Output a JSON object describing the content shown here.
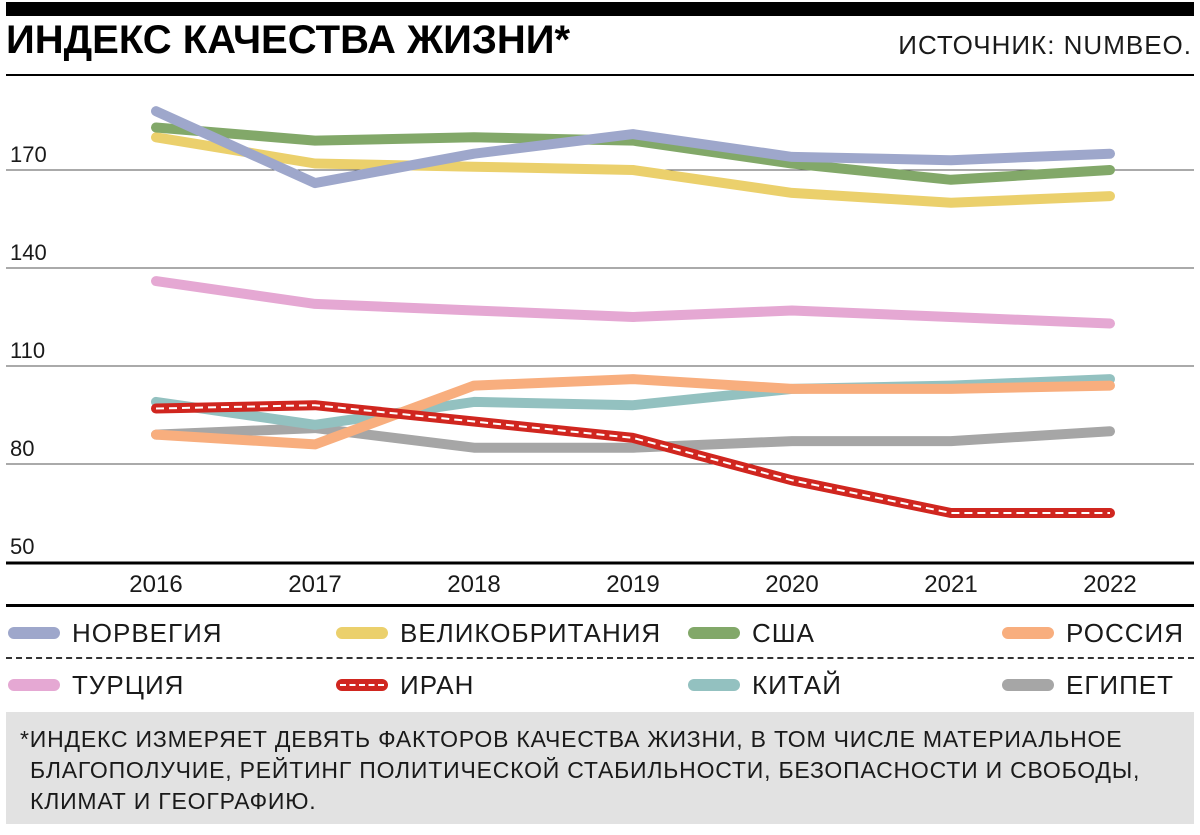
{
  "header": {
    "title": "ИНДЕКС КАЧЕСТВА ЖИЗНИ*",
    "source": "ИСТОЧНИК: NUMBEO."
  },
  "chart_data": {
    "type": "line",
    "title": "ИНДЕКС КАЧЕСТВА ЖИЗНИ*",
    "xlabel": "",
    "ylabel": "",
    "x": [
      "2016",
      "2017",
      "2018",
      "2019",
      "2020",
      "2021",
      "2022"
    ],
    "y_ticks": [
      "170",
      "140",
      "110",
      "80",
      "50"
    ],
    "ylim": [
      50,
      190
    ],
    "grid": true,
    "legend_placement": "bottom",
    "series": [
      {
        "name": "НОРВЕГИЯ",
        "color": "#9ea7cb",
        "style": "solid",
        "values": [
          188,
          166,
          175,
          181,
          174,
          173,
          175
        ]
      },
      {
        "name": "ВЕЛИКОБРИТАНИЯ",
        "color": "#ebd06c",
        "style": "solid",
        "values": [
          180,
          172,
          171,
          170,
          163,
          160,
          162
        ]
      },
      {
        "name": "США",
        "color": "#82a869",
        "style": "solid",
        "values": [
          183,
          179,
          180,
          179,
          172,
          167,
          170
        ]
      },
      {
        "name": "РОССИЯ",
        "color": "#f8ae7e",
        "style": "solid",
        "values": [
          89,
          86,
          104,
          106,
          103,
          103,
          104
        ]
      },
      {
        "name": "ТУРЦИЯ",
        "color": "#e5a8d3",
        "style": "solid",
        "values": [
          136,
          129,
          127,
          125,
          127,
          125,
          123
        ]
      },
      {
        "name": "ИРАН",
        "color": "#d0261f",
        "style": "dashed",
        "values": [
          97,
          98,
          93,
          88,
          75,
          65,
          65
        ]
      },
      {
        "name": "КИТАЙ",
        "color": "#93c1c0",
        "style": "solid",
        "values": [
          99,
          92,
          99,
          98,
          103,
          104,
          106
        ]
      },
      {
        "name": "ЕГИПЕТ",
        "color": "#a6a6a6",
        "style": "solid",
        "values": [
          89,
          91,
          85,
          85,
          87,
          87,
          90
        ]
      }
    ]
  },
  "legend": {
    "items": [
      {
        "label": "НОРВЕГИЯ",
        "color": "#9ea7cb"
      },
      {
        "label": "ВЕЛИКОБРИТАНИЯ",
        "color": "#ebd06c"
      },
      {
        "label": "США",
        "color": "#82a869"
      },
      {
        "label": "РОССИЯ",
        "color": "#f8ae7e"
      },
      {
        "label": "ТУРЦИЯ",
        "color": "#e5a8d3"
      },
      {
        "label": "ИРАН",
        "color": "#d0261f"
      },
      {
        "label": "КИТАЙ",
        "color": "#93c1c0"
      },
      {
        "label": "ЕГИПЕТ",
        "color": "#a6a6a6"
      }
    ]
  },
  "footnote": {
    "line1": "*ИНДЕКС ИЗМЕРЯЕТ ДЕВЯТЬ ФАКТОРОВ КАЧЕСТВА ЖИЗНИ, В ТОМ ЧИСЛЕ МАТЕРИАЛЬНОЕ",
    "line2": "БЛАГОПОЛУЧИЕ, РЕЙТИНГ ПОЛИТИЧЕСКОЙ СТАБИЛЬНОСТИ, БЕЗОПАСНОСТИ И СВОБОДЫ,",
    "line3": "КЛИМАТ И ГЕОГРАФИЮ."
  }
}
